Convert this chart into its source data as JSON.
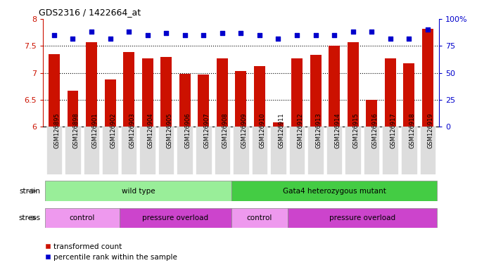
{
  "title": "GDS2316 / 1422664_at",
  "samples": [
    "GSM126895",
    "GSM126898",
    "GSM126901",
    "GSM126902",
    "GSM126903",
    "GSM126904",
    "GSM126905",
    "GSM126906",
    "GSM126907",
    "GSM126908",
    "GSM126909",
    "GSM126910",
    "GSM126911",
    "GSM126912",
    "GSM126913",
    "GSM126914",
    "GSM126915",
    "GSM126916",
    "GSM126917",
    "GSM126918",
    "GSM126919"
  ],
  "red_values": [
    7.35,
    6.67,
    7.57,
    6.88,
    7.38,
    7.27,
    7.3,
    6.98,
    6.97,
    7.27,
    7.03,
    7.12,
    6.08,
    7.27,
    7.33,
    7.5,
    7.57,
    6.5,
    7.27,
    7.18,
    7.82
  ],
  "blue_values": [
    85,
    82,
    88,
    82,
    88,
    85,
    87,
    85,
    85,
    87,
    87,
    85,
    82,
    85,
    85,
    85,
    88,
    88,
    82,
    82,
    90
  ],
  "ylim_left": [
    6.0,
    8.0
  ],
  "ylim_right": [
    0,
    100
  ],
  "yticks_left": [
    6.0,
    6.5,
    7.0,
    7.5,
    8.0
  ],
  "yticks_right": [
    0,
    25,
    50,
    75,
    100
  ],
  "ytick_labels_left": [
    "6",
    "6.5",
    "7",
    "7.5",
    "8"
  ],
  "ytick_labels_right": [
    "0",
    "25",
    "50",
    "75",
    "100%"
  ],
  "bar_color": "#CC1100",
  "dot_color": "#0000CC",
  "strain_groups": [
    {
      "label": "wild type",
      "start": 0,
      "end": 10,
      "color": "#99EE99"
    },
    {
      "label": "Gata4 heterozygous mutant",
      "start": 10,
      "end": 21,
      "color": "#44CC44"
    }
  ],
  "stress_groups": [
    {
      "label": "control",
      "start": 0,
      "end": 4,
      "color": "#EE99EE"
    },
    {
      "label": "pressure overload",
      "start": 4,
      "end": 10,
      "color": "#CC44CC"
    },
    {
      "label": "control",
      "start": 10,
      "end": 13,
      "color": "#EE99EE"
    },
    {
      "label": "pressure overload",
      "start": 13,
      "end": 21,
      "color": "#CC44CC"
    }
  ],
  "legend_red_label": "transformed count",
  "legend_blue_label": "percentile rank within the sample",
  "strain_label": "strain",
  "stress_label": "stress"
}
